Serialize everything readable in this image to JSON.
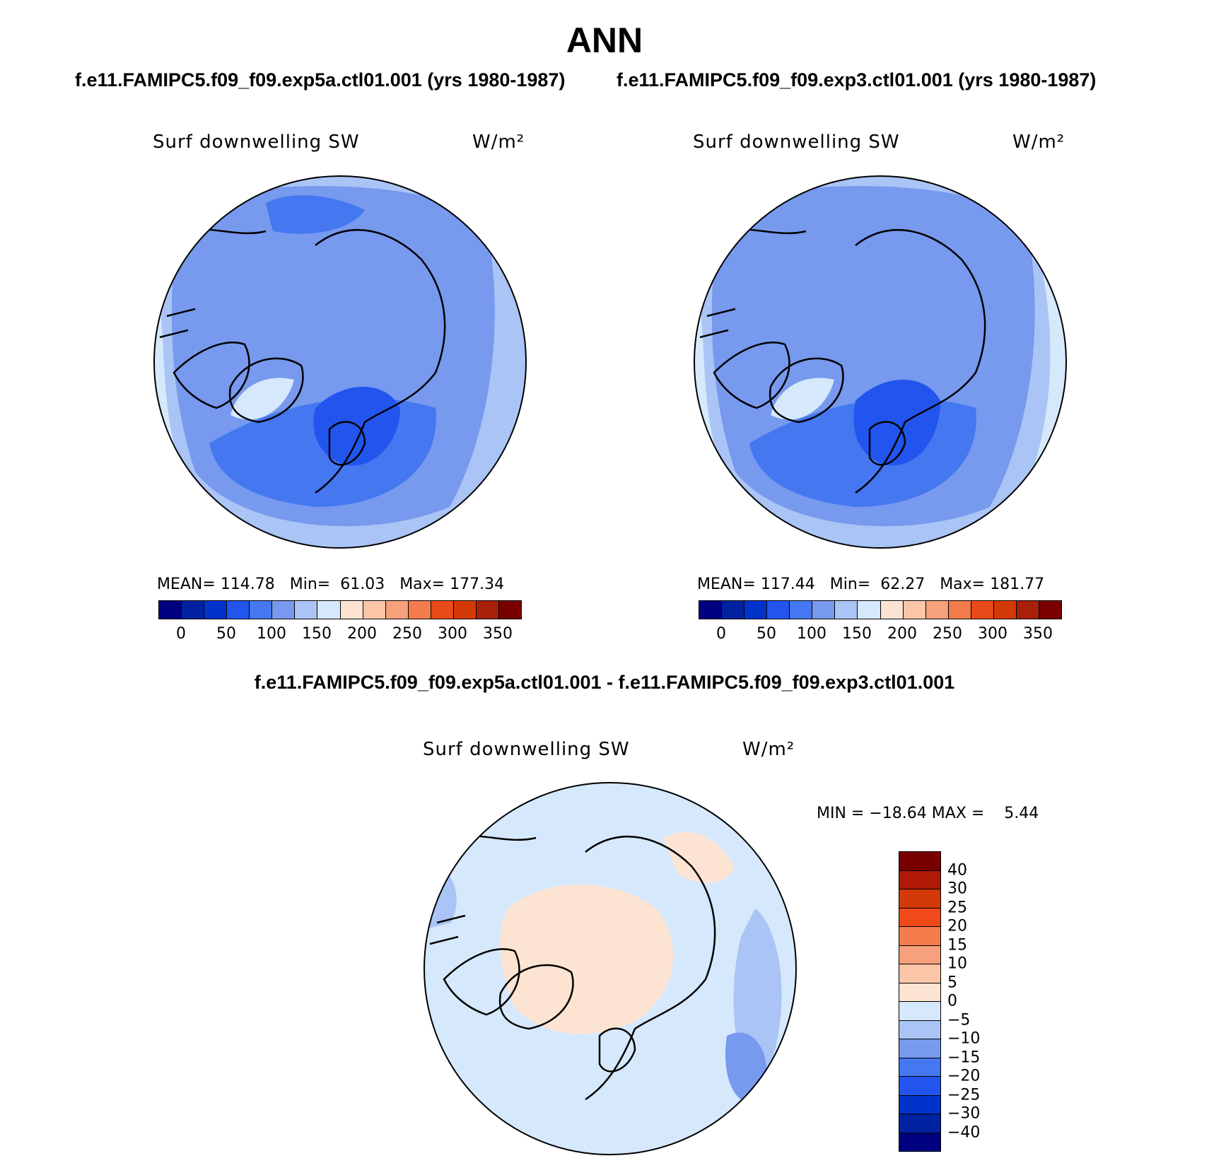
{
  "title": "ANN",
  "panels": {
    "left": {
      "case": "f.e11.FAMIPC5.f09_f09.exp5a.ctl01.001 (yrs 1980-1987)",
      "variable": "Surf downwelling SW",
      "units": "W/m²",
      "stats": "MEAN= 114.78   Min=  61.03   Max= 177.34"
    },
    "right": {
      "case": "f.e11.FAMIPC5.f09_f09.exp3.ctl01.001 (yrs 1980-1987)",
      "variable": "Surf downwelling SW",
      "units": "W/m²",
      "stats": "MEAN= 117.44   Min=  62.27   Max= 181.77"
    },
    "diff": {
      "case": "f.e11.FAMIPC5.f09_f09.exp5a.ctl01.001 - f.e11.FAMIPC5.f09_f09.exp3.ctl01.001",
      "variable": "Surf downwelling SW",
      "units": "W/m²",
      "stats": "MIN = −18.64 MAX =    5.44"
    }
  },
  "colorbar_main": {
    "colors": [
      "#000080",
      "#0022a0",
      "#0033cc",
      "#2255ee",
      "#4477f0",
      "#7799ee",
      "#aac4f6",
      "#d6e8fb",
      "#fde4d2",
      "#fbc6a8",
      "#f6a07c",
      "#f47b4c",
      "#e84a1a",
      "#d43a08",
      "#a8200a",
      "#7a0000"
    ],
    "tick_labels": [
      "0",
      "50",
      "100",
      "150",
      "200",
      "250",
      "300",
      "350"
    ]
  },
  "colorbar_diff": {
    "colors": [
      "#7a0000",
      "#b01808",
      "#d43a08",
      "#f04a1a",
      "#f47b4c",
      "#f6a07c",
      "#fbc6a8",
      "#fde4d2",
      "#d6e8fb",
      "#aac4f6",
      "#7799ee",
      "#4477f0",
      "#2255ee",
      "#0033cc",
      "#0022a0",
      "#000080"
    ],
    "tick_labels": [
      "40",
      "30",
      "25",
      "20",
      "15",
      "10",
      "5",
      "0",
      "−5",
      "−10",
      "−15",
      "−20",
      "−25",
      "−30",
      "−40"
    ]
  }
}
